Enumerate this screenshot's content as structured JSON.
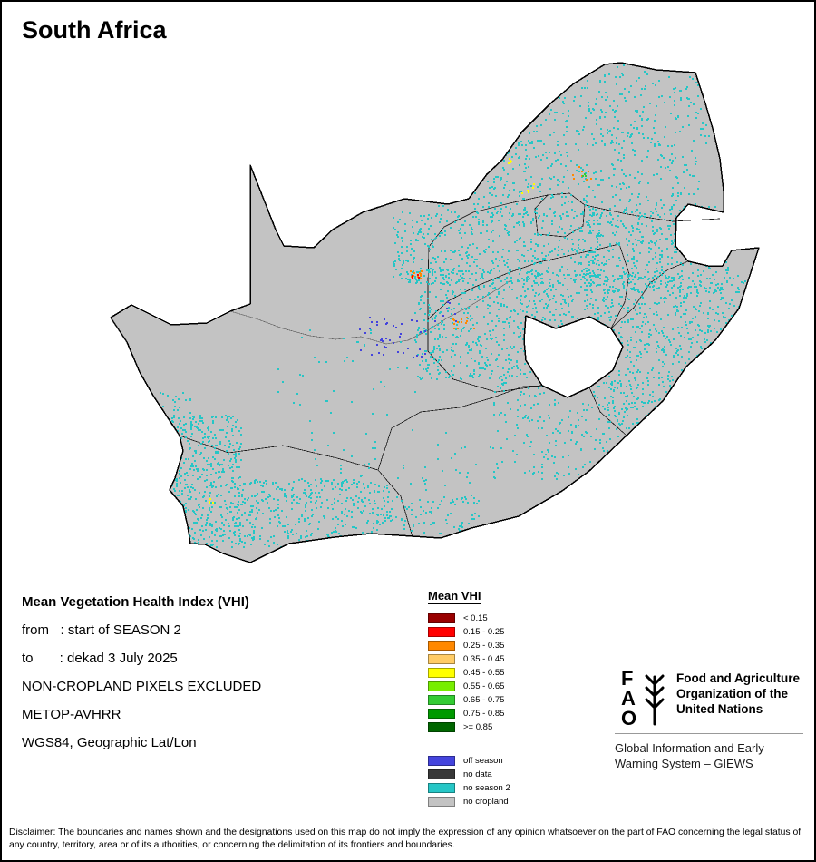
{
  "title": "South Africa",
  "info": {
    "lines": [
      {
        "text": "Mean Vegetation Health Index (VHI)",
        "bold": true
      },
      {
        "text": "from   : start of SEASON 2",
        "bold": false
      },
      {
        "text": "to       : dekad 3 July 2025",
        "bold": false
      },
      {
        "text": "NON-CROPLAND PIXELS EXCLUDED",
        "bold": false
      },
      {
        "text": "METOP-AVHRR",
        "bold": false
      },
      {
        "text": "WGS84, Geographic Lat/Lon",
        "bold": false
      }
    ]
  },
  "legend": {
    "title": "Mean VHI",
    "classes": [
      {
        "label": "< 0.15",
        "color": "#990000"
      },
      {
        "label": "0.15 - 0.25",
        "color": "#ff0000"
      },
      {
        "label": "0.25 - 0.35",
        "color": "#ff8800"
      },
      {
        "label": "0.35 - 0.45",
        "color": "#ffcc66"
      },
      {
        "label": "0.45 - 0.55",
        "color": "#ffff00"
      },
      {
        "label": "0.55 - 0.65",
        "color": "#77ee00"
      },
      {
        "label": "0.65 - 0.75",
        "color": "#33cc33"
      },
      {
        "label": "0.75 - 0.85",
        "color": "#009900"
      },
      {
        "label": ">= 0.85",
        "color": "#006600"
      }
    ],
    "extra_classes": [
      {
        "label": "off season",
        "color": "#4444dd"
      },
      {
        "label": "no data",
        "color": "#383838"
      },
      {
        "label": "no season 2",
        "color": "#26c6c6"
      },
      {
        "label": "no cropland",
        "color": "#c3c3c3"
      }
    ]
  },
  "map_colors": {
    "land": "#c3c3c3",
    "border": "#000000",
    "no_season2": "#26c6c6",
    "off_season": "#4444dd"
  },
  "fao": {
    "emblem_letters": [
      "F",
      "A",
      "O"
    ],
    "org_name": "Food and Agriculture Organization of the United Nations",
    "giews": "Global Information and Early Warning System – GIEWS"
  },
  "disclaimer": "Disclaimer: The boundaries and names shown and the designations used on this map do not imply the expression of any opinion whatsoever on the part of FAO concerning the legal status of any country, territory, area or of its authorities, or concerning the delimitation of its frontiers and boundaries."
}
